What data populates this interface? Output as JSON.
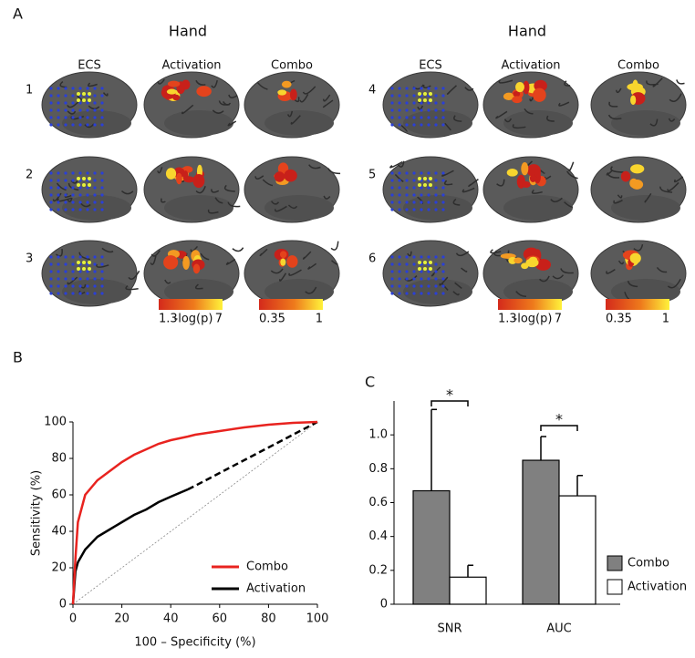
{
  "panel_a": {
    "label": "A",
    "groups": [
      {
        "title": "Hand",
        "columns": [
          "ECS",
          "Activation",
          "Combo"
        ],
        "rows": [
          "1",
          "2",
          "3"
        ],
        "scales": [
          {
            "min": "1.3",
            "label": "-log(p)",
            "max": "7"
          },
          {
            "min": "0.35",
            "max": "1"
          }
        ]
      },
      {
        "title": "Hand",
        "columns": [
          "ECS",
          "Activation",
          "Combo"
        ],
        "rows": [
          "4",
          "5",
          "6"
        ],
        "scales": [
          {
            "min": "1.3",
            "label": "-log(p)",
            "max": "7"
          },
          {
            "min": "0.35",
            "max": "1"
          }
        ]
      }
    ]
  },
  "chart_data": [
    {
      "type": "line",
      "panel": "B",
      "xlabel": "100 – Specificity (%)",
      "ylabel": "Sensitivity (%)",
      "x": [
        0,
        1,
        2,
        5,
        10,
        15,
        20,
        25,
        30,
        35,
        40,
        47,
        50,
        60,
        70,
        80,
        90,
        100
      ],
      "xlim": [
        0,
        100
      ],
      "ylim": [
        0,
        100
      ],
      "xticks": [
        0,
        20,
        40,
        60,
        80,
        100
      ],
      "yticks": [
        0,
        20,
        40,
        60,
        80,
        100
      ],
      "legend": "lower-right",
      "series": [
        {
          "name": "Combo",
          "color": "#e8231f",
          "style": "solid",
          "values": [
            0,
            25,
            45,
            60,
            68,
            73,
            78,
            82,
            85,
            88,
            90,
            92,
            93,
            95,
            97,
            98.5,
            99.5,
            100
          ]
        },
        {
          "name": "Activation",
          "color": "#000000",
          "style": "solid",
          "values": [
            0,
            18,
            23,
            30,
            37,
            41,
            45,
            49,
            52,
            56,
            59,
            63,
            null,
            null,
            null,
            null,
            null,
            null
          ]
        },
        {
          "color": "#000000",
          "style": "dashed",
          "values": [
            null,
            null,
            null,
            null,
            null,
            null,
            null,
            null,
            null,
            null,
            null,
            63,
            65,
            72,
            79,
            86,
            93,
            100
          ]
        },
        {
          "color": "#888888",
          "style": "dotted",
          "values": [
            0,
            1,
            2,
            5,
            10,
            15,
            20,
            25,
            30,
            35,
            40,
            47,
            50,
            60,
            70,
            80,
            90,
            100
          ]
        }
      ]
    },
    {
      "type": "bar",
      "panel": "C",
      "categories": [
        "SNR",
        "AUC"
      ],
      "significance": [
        "*",
        "*"
      ],
      "ylim": [
        0,
        1.2
      ],
      "yticks": [
        0,
        0.2,
        0.4,
        0.6,
        0.8,
        {
          "value": 1,
          "label": "1.0"
        }
      ],
      "legend": "lower-right",
      "series": [
        {
          "name": "Combo",
          "color": "#808080",
          "values": [
            0.67,
            0.85
          ],
          "errors": [
            0.48,
            0.14
          ]
        },
        {
          "name": "Activation",
          "color": "#ffffff",
          "values": [
            0.16,
            0.64
          ],
          "errors": [
            0.07,
            0.12
          ]
        }
      ]
    }
  ]
}
